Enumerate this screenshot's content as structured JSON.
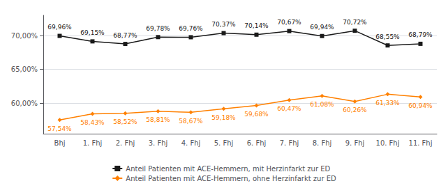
{
  "chart_data": {
    "type": "line",
    "categories": [
      "Bhj",
      "1. Fhj",
      "2. Fhj",
      "3. Fhj",
      "4. Fhj",
      "5. Fhj",
      "6. Fhj",
      "7. Fhj",
      "8. Fhj",
      "9. Fhj",
      "10. Fhj",
      "11. Fhj"
    ],
    "series": [
      {
        "name": "Anteil Patienten mit ACE-Hemmern, mit Herzinfarkt zur ED",
        "color": "#1a1a1a",
        "marker": "square",
        "values": [
          69.96,
          69.15,
          68.77,
          69.78,
          69.76,
          70.37,
          70.14,
          70.67,
          69.94,
          70.72,
          68.55,
          68.79
        ],
        "value_labels": [
          "69,96%",
          "69,15%",
          "68,77%",
          "69,78%",
          "69,76%",
          "70,37%",
          "70,14%",
          "70,67%",
          "69,94%",
          "70,72%",
          "68,55%",
          "68,79%"
        ]
      },
      {
        "name": "Anteil Patienten mit ACE-Hemmern, ohne Herzinfarkt zur ED",
        "color": "#FF8000",
        "marker": "diamond",
        "values": [
          57.54,
          58.43,
          58.52,
          58.81,
          58.67,
          59.18,
          59.68,
          60.47,
          61.08,
          60.26,
          61.33,
          60.94
        ],
        "value_labels": [
          "57,54%",
          "58,43%",
          "58,52%",
          "58,81%",
          "58,67%",
          "59,18%",
          "59,68%",
          "60,47%",
          "61,08%",
          "60,26%",
          "61,33%",
          "60,94%"
        ]
      }
    ],
    "ylim": [
      55.5,
      73.0
    ],
    "yticks": [
      {
        "value": 60.0,
        "label": "60,00%"
      },
      {
        "value": 65.0,
        "label": "65,00%"
      },
      {
        "value": 70.0,
        "label": "70,00%"
      }
    ],
    "data_labels": true,
    "grid": true,
    "legend": "bottom"
  }
}
